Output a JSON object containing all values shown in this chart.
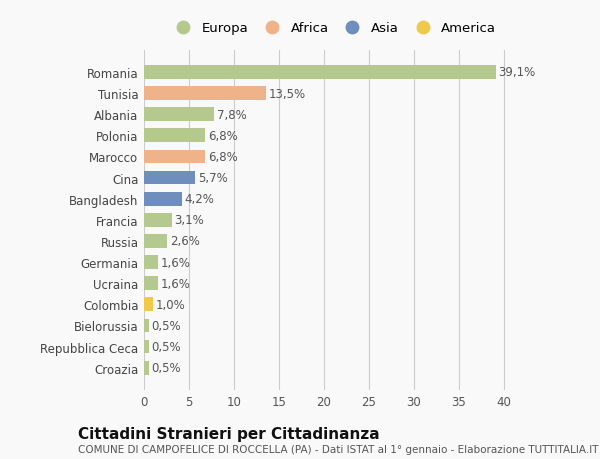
{
  "countries": [
    "Romania",
    "Tunisia",
    "Albania",
    "Polonia",
    "Marocco",
    "Cina",
    "Bangladesh",
    "Francia",
    "Russia",
    "Germania",
    "Ucraina",
    "Colombia",
    "Bielorussia",
    "Repubblica Ceca",
    "Croazia"
  ],
  "values": [
    39.1,
    13.5,
    7.8,
    6.8,
    6.8,
    5.7,
    4.2,
    3.1,
    2.6,
    1.6,
    1.6,
    1.0,
    0.5,
    0.5,
    0.5
  ],
  "labels": [
    "39,1%",
    "13,5%",
    "7,8%",
    "6,8%",
    "6,8%",
    "5,7%",
    "4,2%",
    "3,1%",
    "2,6%",
    "1,6%",
    "1,6%",
    "1,0%",
    "0,5%",
    "0,5%",
    "0,5%"
  ],
  "continents": [
    "Europa",
    "Africa",
    "Europa",
    "Europa",
    "Africa",
    "Asia",
    "Asia",
    "Europa",
    "Europa",
    "Europa",
    "Europa",
    "America",
    "Europa",
    "Europa",
    "Europa"
  ],
  "continent_colors": {
    "Europa": "#b5c98e",
    "Africa": "#f0b389",
    "Asia": "#6e8fbe",
    "America": "#f0c84a"
  },
  "legend_order": [
    "Europa",
    "Africa",
    "Asia",
    "America"
  ],
  "title": "Cittadini Stranieri per Cittadinanza",
  "subtitle": "COMUNE DI CAMPOFELICE DI ROCCELLA (PA) - Dati ISTAT al 1° gennaio - Elaborazione TUTTITALIA.IT",
  "xlim": [
    0,
    42
  ],
  "xticks": [
    0,
    5,
    10,
    15,
    20,
    25,
    30,
    35,
    40
  ],
  "background_color": "#f9f9f9",
  "grid_color": "#cccccc",
  "bar_height": 0.65,
  "label_fontsize": 8.5,
  "tick_fontsize": 8.5,
  "ytick_fontsize": 8.5,
  "title_fontsize": 11,
  "subtitle_fontsize": 7.5
}
